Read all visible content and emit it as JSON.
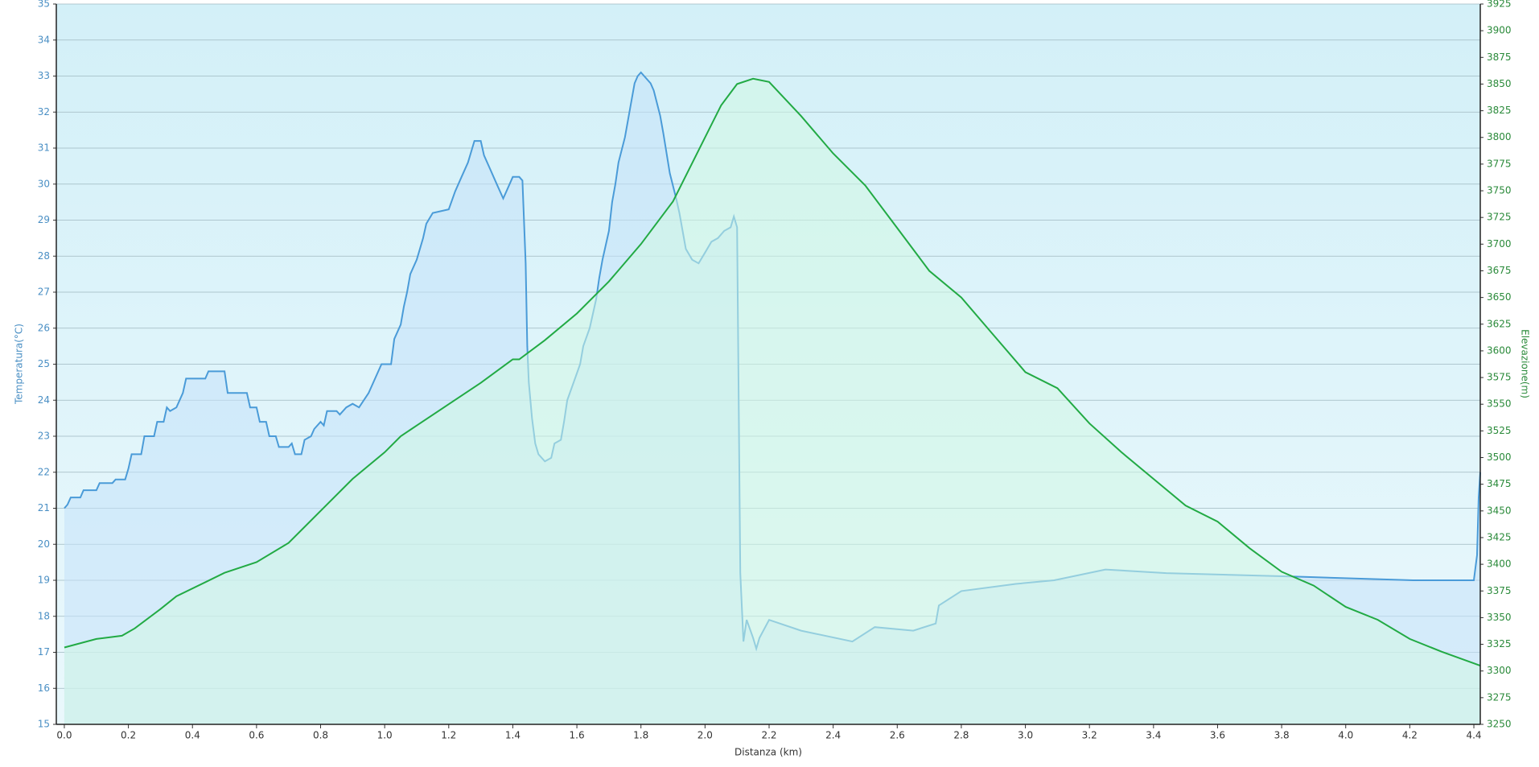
{
  "chart_data": {
    "type": "line",
    "xlabel": "Distanza  (km)",
    "ylabel": "Temperatura(°C)",
    "y2label": "Elevazione(m)",
    "xlim": [
      -0.025,
      4.42
    ],
    "xticks": [
      {
        "value": 0,
        "label": "0.0"
      },
      0.2,
      0.4,
      0.6,
      0.8,
      {
        "value": 1,
        "label": "1.0"
      },
      1.2,
      1.4,
      1.6,
      1.8,
      {
        "value": 2,
        "label": "2.0"
      },
      2.2,
      2.4,
      2.6,
      2.8,
      {
        "value": 3,
        "label": "3.0"
      },
      3.2,
      3.4,
      3.6,
      3.8,
      {
        "value": 4,
        "label": "4.0"
      },
      4.2,
      4.4
    ],
    "ylim": [
      15,
      35
    ],
    "yticks": [
      15,
      16,
      17,
      18,
      19,
      20,
      21,
      22,
      23,
      24,
      25,
      26,
      27,
      28,
      29,
      30,
      31,
      32,
      33,
      34,
      35
    ],
    "y2lim": [
      3250,
      3925
    ],
    "y2ticks": [
      3250,
      3275,
      3300,
      3325,
      3350,
      3375,
      3400,
      3425,
      3450,
      3475,
      3500,
      3525,
      3550,
      3575,
      3600,
      3625,
      3650,
      3675,
      3700,
      3725,
      3750,
      3775,
      3800,
      3825,
      3850,
      3875,
      3900,
      3925
    ],
    "grid": true,
    "series": [
      {
        "color": "#4a9bd8",
        "fill": "#c4e2fa",
        "axis": "y",
        "x": [
          0,
          0.01,
          0.02,
          0.05,
          0.06,
          0.1,
          0.11,
          0.15,
          0.16,
          0.19,
          0.2,
          0.21,
          0.24,
          0.25,
          0.28,
          0.29,
          0.31,
          0.32,
          0.33,
          0.35,
          0.37,
          0.38,
          0.44,
          0.45,
          0.5,
          0.51,
          0.57,
          0.58,
          0.6,
          0.61,
          0.63,
          0.64,
          0.66,
          0.67,
          0.7,
          0.71,
          0.72,
          0.74,
          0.75,
          0.77,
          0.78,
          0.8,
          0.81,
          0.82,
          0.85,
          0.86,
          0.88,
          0.9,
          0.92,
          0.95,
          0.97,
          0.99,
          1.02,
          1.03,
          1.05,
          1.06,
          1.07,
          1.08,
          1.1,
          1.12,
          1.13,
          1.15,
          1.2,
          1.22,
          1.24,
          1.26,
          1.28,
          1.3,
          1.31,
          1.33,
          1.35,
          1.37,
          1.38,
          1.4,
          1.42,
          1.43,
          1.44,
          1.445,
          1.45,
          1.46,
          1.47,
          1.48,
          1.5,
          1.52,
          1.53,
          1.55,
          1.56,
          1.57,
          1.59,
          1.61,
          1.62,
          1.64,
          1.66,
          1.67,
          1.68,
          1.7,
          1.71,
          1.72,
          1.73,
          1.75,
          1.76,
          1.77,
          1.78,
          1.79,
          1.8,
          1.83,
          1.84,
          1.86,
          1.87,
          1.89,
          1.91,
          1.92,
          1.93,
          1.94,
          1.96,
          1.98,
          2.0,
          2.02,
          2.04,
          2.06,
          2.08,
          2.09,
          2.1,
          2.11,
          2.12,
          2.13,
          2.15,
          2.16,
          2.17,
          2.2,
          2.3,
          2.46,
          2.53,
          2.65,
          2.72,
          2.73,
          2.8,
          2.97,
          3.09,
          3.25,
          3.44,
          3.85,
          4.21,
          4.4,
          4.41,
          4.415,
          4.42
        ],
        "values": [
          21.0,
          21.1,
          21.3,
          21.3,
          21.5,
          21.5,
          21.7,
          21.7,
          21.8,
          21.8,
          22.1,
          22.5,
          22.5,
          23.0,
          23.0,
          23.4,
          23.4,
          23.8,
          23.7,
          23.8,
          24.2,
          24.6,
          24.6,
          24.8,
          24.8,
          24.2,
          24.2,
          23.8,
          23.8,
          23.4,
          23.4,
          23.0,
          23.0,
          22.7,
          22.7,
          22.8,
          22.5,
          22.5,
          22.9,
          23.0,
          23.2,
          23.4,
          23.3,
          23.7,
          23.7,
          23.6,
          23.8,
          23.9,
          23.8,
          24.2,
          24.6,
          25.0,
          25.0,
          25.7,
          26.1,
          26.6,
          27.0,
          27.5,
          27.9,
          28.5,
          28.9,
          29.2,
          29.3,
          29.8,
          30.2,
          30.6,
          31.2,
          31.2,
          30.8,
          30.4,
          30.0,
          29.6,
          29.8,
          30.2,
          30.2,
          30.1,
          27.8,
          25.5,
          24.5,
          23.5,
          22.8,
          22.5,
          22.3,
          22.4,
          22.8,
          22.9,
          23.4,
          24.0,
          24.5,
          25.0,
          25.5,
          26.0,
          26.8,
          27.4,
          27.9,
          28.7,
          29.5,
          30.0,
          30.6,
          31.3,
          31.8,
          32.3,
          32.8,
          33.0,
          33.1,
          32.8,
          32.6,
          31.9,
          31.4,
          30.3,
          29.6,
          29.2,
          28.7,
          28.2,
          27.9,
          27.8,
          28.1,
          28.4,
          28.5,
          28.7,
          28.8,
          29.1,
          28.8,
          19.2,
          17.3,
          17.9,
          17.4,
          17.1,
          17.4,
          17.9,
          17.6,
          17.3,
          17.7,
          17.6,
          17.8,
          18.3,
          18.7,
          18.9,
          19.0,
          19.3,
          19.2,
          19.1,
          19.0,
          19.0,
          19.7,
          21.3,
          22.0
        ]
      },
      {
        "color": "#22aa44",
        "fill": "#d2f7e4",
        "axis": "y2",
        "x": [
          0,
          0.1,
          0.18,
          0.22,
          0.3,
          0.35,
          0.5,
          0.6,
          0.7,
          0.8,
          0.9,
          1.0,
          1.05,
          1.1,
          1.2,
          1.3,
          1.4,
          1.42,
          1.5,
          1.6,
          1.7,
          1.8,
          1.9,
          2.0,
          2.05,
          2.1,
          2.15,
          2.2,
          2.3,
          2.4,
          2.5,
          2.6,
          2.7,
          2.8,
          2.9,
          3.0,
          3.1,
          3.2,
          3.3,
          3.4,
          3.5,
          3.6,
          3.7,
          3.8,
          3.9,
          4.0,
          4.1,
          4.2,
          4.3,
          4.42
        ],
        "values": [
          3322,
          3330,
          3333,
          3340,
          3358,
          3370,
          3392,
          3402,
          3420,
          3450,
          3480,
          3505,
          3520,
          3530,
          3550,
          3570,
          3592,
          3592,
          3610,
          3635,
          3665,
          3700,
          3740,
          3800,
          3830,
          3850,
          3855,
          3852,
          3820,
          3785,
          3755,
          3715,
          3675,
          3650,
          3615,
          3580,
          3565,
          3532,
          3505,
          3480,
          3455,
          3440,
          3415,
          3393,
          3380,
          3360,
          3348,
          3330,
          3318,
          3305
        ]
      }
    ]
  }
}
